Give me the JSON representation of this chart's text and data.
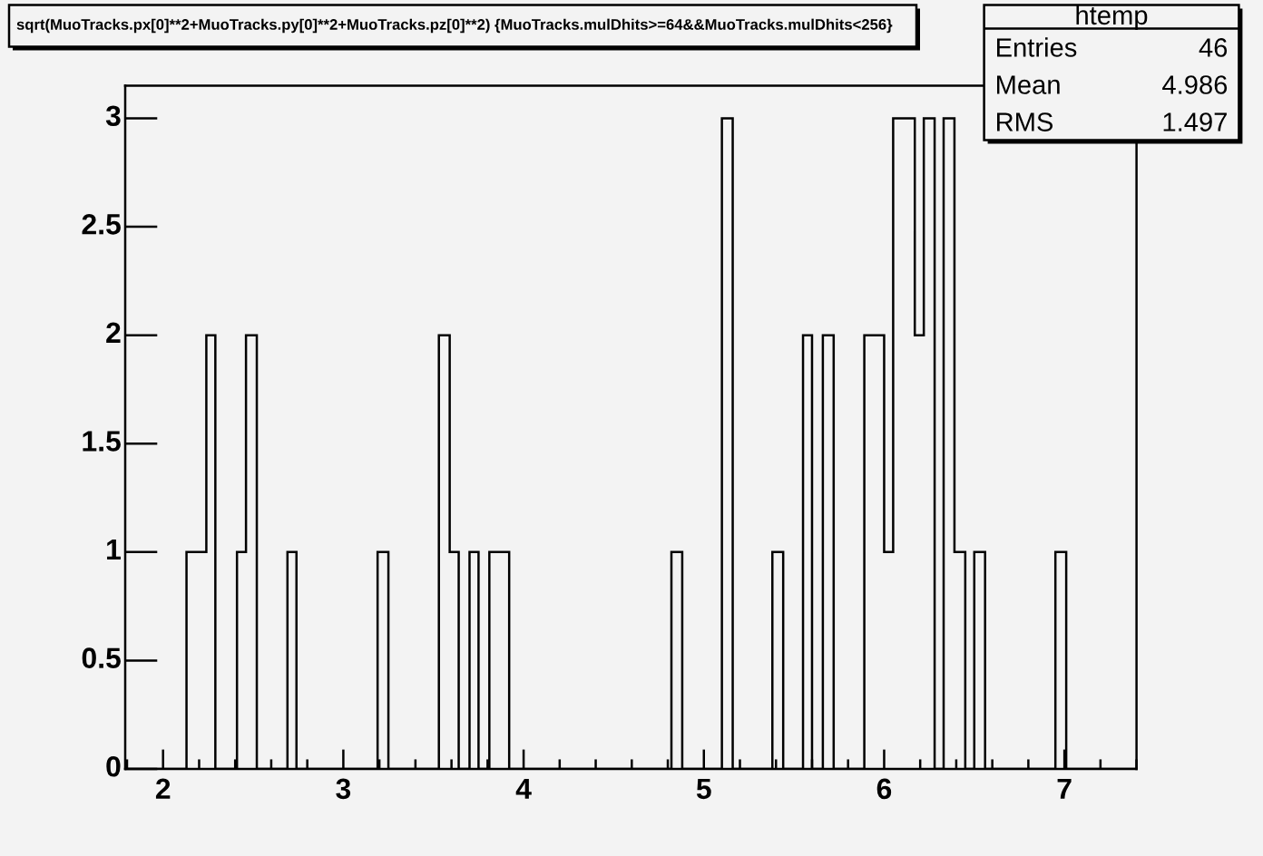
{
  "chart_data": {
    "type": "histogram",
    "title": "sqrt(MuoTracks.px[0]**2+MuoTracks.py[0]**2+MuoTracks.pz[0]**2) {MuoTracks.mulDhits>=64&&MuoTracks.mulDhits<256}",
    "bins": [
      1.79,
      1.85,
      1.9,
      1.96,
      2.01,
      2.07,
      2.13,
      2.18,
      2.24,
      2.29,
      2.35,
      2.41,
      2.46,
      2.52,
      2.58,
      2.63,
      2.69,
      2.74,
      2.8,
      2.86,
      2.91,
      2.97,
      3.02,
      3.08,
      3.14,
      3.19,
      3.25,
      3.3,
      3.36,
      3.42,
      3.47,
      3.53,
      3.59,
      3.64,
      3.7,
      3.75,
      3.81,
      3.87,
      3.92,
      3.98,
      4.03,
      4.09,
      4.15,
      4.2,
      4.26,
      4.31,
      4.37,
      4.43,
      4.48,
      4.54,
      4.6,
      4.65,
      4.71,
      4.76,
      4.82,
      4.88,
      4.93,
      4.99,
      5.04,
      5.1,
      5.16,
      5.21,
      5.27,
      5.32,
      5.38,
      5.44,
      5.49,
      5.55,
      5.6,
      5.66,
      5.72,
      5.77,
      5.83,
      5.89,
      5.94,
      6.0,
      6.05,
      6.11,
      6.17,
      6.22,
      6.28,
      6.33,
      6.39,
      6.45,
      6.5,
      6.56,
      6.61,
      6.67,
      6.73,
      6.78,
      6.84,
      6.9,
      6.95,
      7.01,
      7.06,
      7.12,
      7.18,
      7.23,
      7.29,
      7.34,
      7.4
    ],
    "values": [
      0,
      0,
      0,
      0,
      0,
      0,
      1,
      1,
      2,
      0,
      0,
      1,
      2,
      0,
      0,
      0,
      1,
      0,
      0,
      0,
      0,
      0,
      0,
      0,
      0,
      1,
      0,
      0,
      0,
      0,
      0,
      2,
      1,
      0,
      1,
      0,
      1,
      1,
      0,
      0,
      0,
      0,
      0,
      0,
      0,
      0,
      0,
      0,
      0,
      0,
      0,
      0,
      0,
      0,
      1,
      0,
      0,
      0,
      0,
      3,
      0,
      0,
      0,
      0,
      1,
      0,
      0,
      2,
      0,
      2,
      0,
      0,
      0,
      2,
      2,
      1,
      3,
      3,
      2,
      3,
      0,
      3,
      1,
      0,
      1,
      0,
      0,
      0,
      0,
      0,
      0,
      0,
      1,
      0,
      0,
      0,
      0,
      0,
      0,
      0
    ],
    "color": "#000000",
    "xlim": [
      1.79,
      7.4
    ],
    "ylim": [
      0,
      3.15
    ],
    "xticks": [
      2,
      3,
      4,
      5,
      6,
      7
    ],
    "yticks": [
      0,
      0.5,
      1,
      1.5,
      2,
      2.5,
      3
    ],
    "annotations": [
      "htemp",
      "Entries",
      "46",
      "Mean",
      "4.986",
      "RMS",
      "1.497"
    ]
  }
}
